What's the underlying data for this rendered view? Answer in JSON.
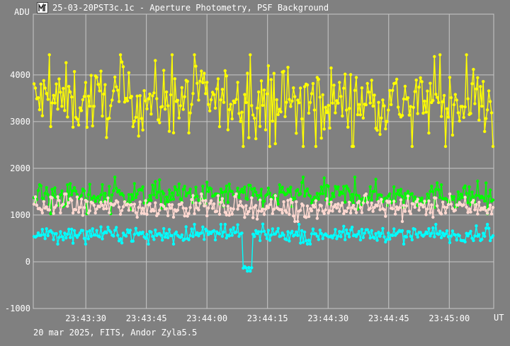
{
  "window": {
    "title": "25-03-20PST3c.1c - Aperture Photometry, PSF Background",
    "icon": "app-icon"
  },
  "footer": "20 mar 2025, FITS, Andor Zyla5.5",
  "colors": {
    "background": "#808080",
    "grid": "#c8c8c8",
    "text": "#ffffff",
    "yellow": "#ffff00",
    "green": "#00ff00",
    "pink": "#ffd8d0",
    "cyan": "#00ffff"
  },
  "chart_data": {
    "type": "scatter",
    "title": "25-03-20PST3c.1c - Aperture Photometry, PSF Background",
    "xlabel": "UT",
    "ylabel": "ADU",
    "x_ticks": [
      "23:43:30",
      "23:43:45",
      "23:44:00",
      "23:44:15",
      "23:44:30",
      "23:44:45",
      "23:45:00"
    ],
    "y_ticks": [
      -1000,
      0,
      1000,
      2000,
      3000,
      4000
    ],
    "xlim": [
      "23:43:17",
      "23:45:11"
    ],
    "ylim": [
      -1000,
      5300
    ],
    "grid": true,
    "series": [
      {
        "color": "yellow",
        "mean": 3450,
        "scatter": 360,
        "min": 2470,
        "max": 4430
      },
      {
        "color": "green",
        "mean": 1420,
        "scatter": 140,
        "min": 880,
        "max": 2080
      },
      {
        "color": "pink",
        "mean": 1170,
        "scatter": 110,
        "min": 850,
        "max": 1450
      },
      {
        "color": "cyan",
        "mean": 590,
        "scatter": 75,
        "min": -200,
        "max": 960
      }
    ],
    "features": [
      {
        "series": "cyan",
        "time": "23:44:10",
        "value": -150,
        "note": ""
      }
    ]
  }
}
